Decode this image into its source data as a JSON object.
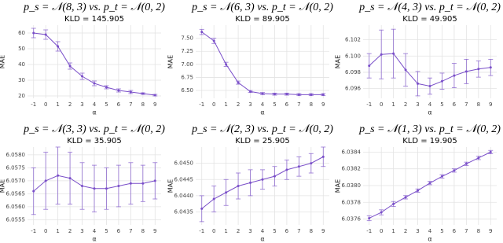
{
  "chart_data": [
    {
      "type": "line",
      "title": "p_s = 𝒩(8, 3)  vs.  p_t = 𝒩(0, 2)",
      "subtitle": "KLD = 145.905",
      "xlabel": "α",
      "ylabel": "MAE",
      "color": "#7a4fc9",
      "grid": true,
      "x": [
        -1,
        0,
        1,
        2,
        3,
        4,
        5,
        6,
        7,
        8,
        9
      ],
      "xlim": [
        -1.5,
        9.5
      ],
      "xticks": [
        -1,
        0,
        1,
        2,
        3,
        4,
        5,
        6,
        7,
        8,
        9
      ],
      "values": [
        60,
        59,
        51.5,
        39,
        32.5,
        28,
        25.5,
        23.5,
        22.5,
        21.5,
        20.5
      ],
      "errors": [
        3,
        3,
        3,
        2,
        2,
        1.5,
        1,
        1,
        1,
        0.5,
        0.5
      ],
      "ylim": [
        18.5,
        65
      ],
      "yticks": [
        20,
        30,
        40,
        50,
        60
      ]
    },
    {
      "type": "line",
      "title": "p_s = 𝒩(6, 3)  vs.  p_t = 𝒩(0, 2)",
      "subtitle": "KLD = 89.905",
      "xlabel": "α",
      "ylabel": "MAE",
      "color": "#7a4fc9",
      "grid": true,
      "x": [
        -1,
        0,
        1,
        2,
        3,
        4,
        5,
        6,
        7,
        8,
        9
      ],
      "xlim": [
        -1.5,
        9.5
      ],
      "xticks": [
        -1,
        0,
        1,
        2,
        3,
        4,
        5,
        6,
        7,
        8,
        9
      ],
      "values": [
        7.62,
        7.45,
        7.0,
        6.65,
        6.48,
        6.44,
        6.43,
        6.43,
        6.42,
        6.42,
        6.42
      ],
      "errors": [
        0.05,
        0.05,
        0.04,
        0.03,
        0.02,
        0.02,
        0.02,
        0.02,
        0.02,
        0.02,
        0.02
      ],
      "ylim": [
        6.35,
        7.75
      ],
      "yticks": [
        {
          "value": 6.5,
          "label": "6.50"
        },
        {
          "value": 6.75,
          "label": "6.75"
        },
        {
          "value": 7,
          "label": "7.00"
        },
        {
          "value": 7.25,
          "label": "7.25"
        },
        {
          "value": 7.5,
          "label": "7.50"
        }
      ]
    },
    {
      "type": "line",
      "title": "p_s = 𝒩(4, 3)  vs.  p_t = 𝒩(0, 2)",
      "subtitle": "KLD = 49.905",
      "xlabel": "α",
      "ylabel": "MAE",
      "color": "#7a4fc9",
      "grid": true,
      "x": [
        -1,
        0,
        1,
        2,
        3,
        4,
        5,
        6,
        7,
        8,
        9
      ],
      "xlim": [
        -1.5,
        9.5
      ],
      "xticks": [
        -1,
        0,
        1,
        2,
        3,
        4,
        5,
        6,
        7,
        8,
        9
      ],
      "values": [
        6.0988,
        6.1002,
        6.1003,
        6.0983,
        6.0966,
        6.0963,
        6.0969,
        6.0976,
        6.0981,
        6.0984,
        6.0986
      ],
      "errors": [
        0.0015,
        0.003,
        0.003,
        0.002,
        0.0015,
        0.001,
        0.001,
        0.0015,
        0.0015,
        0.001,
        0.001
      ],
      "ylim": [
        6.0948,
        6.1038
      ],
      "yticks": [
        6.096,
        6.098,
        {
          "value": 6.1,
          "label": "6.100"
        },
        6.102
      ]
    },
    {
      "type": "line",
      "title": "p_s = 𝒩(3, 3)  vs.  p_t = 𝒩(0, 2)",
      "subtitle": "KLD = 35.905",
      "xlabel": "α",
      "ylabel": "MAE",
      "color": "#7a4fc9",
      "grid": true,
      "x": [
        -1,
        0,
        1,
        2,
        3,
        4,
        5,
        6,
        7,
        8,
        9
      ],
      "xlim": [
        -1.5,
        9.5
      ],
      "xticks": [
        -1,
        0,
        1,
        2,
        3,
        4,
        5,
        6,
        7,
        8,
        9
      ],
      "values": [
        6.0566,
        6.057,
        6.0572,
        6.0571,
        6.0568,
        6.0567,
        6.0567,
        6.0568,
        6.0569,
        6.0569,
        6.057
      ],
      "errors": [
        0.0009,
        0.0011,
        0.0011,
        0.001,
        0.0009,
        0.0009,
        0.0008,
        0.0008,
        0.0008,
        0.0007,
        0.0007
      ],
      "ylim": [
        6.0553,
        6.0583
      ],
      "yticks": [
        6.0555,
        {
          "value": 6.056,
          "label": "6.0560"
        },
        6.0565,
        {
          "value": 6.057,
          "label": "6.0570"
        },
        6.0575,
        {
          "value": 6.058,
          "label": "6.0580"
        }
      ]
    },
    {
      "type": "line",
      "title": "p_s = 𝒩(2, 3)  vs.  p_t = 𝒩(0, 2)",
      "subtitle": "KLD = 25.905",
      "xlabel": "α",
      "ylabel": "MAE",
      "color": "#7a4fc9",
      "grid": true,
      "x": [
        -1,
        0,
        1,
        2,
        3,
        4,
        5,
        6,
        7,
        8,
        9
      ],
      "xlim": [
        -1.5,
        9.5
      ],
      "xticks": [
        -1,
        0,
        1,
        2,
        3,
        4,
        5,
        6,
        7,
        8,
        9
      ],
      "values": [
        6.0436,
        6.0439,
        6.0441,
        6.0443,
        6.0444,
        6.0445,
        6.0446,
        6.0448,
        6.0449,
        6.045,
        6.0452
      ],
      "errors": [
        0.0004,
        0.0004,
        0.0004,
        0.0004,
        0.0004,
        0.0003,
        0.0003,
        0.0003,
        0.0003,
        0.0003,
        0.0003
      ],
      "ylim": [
        6.0431,
        6.0455
      ],
      "yticks": [
        6.0435,
        {
          "value": 6.044,
          "label": "6.0440"
        },
        6.0445,
        {
          "value": 6.045,
          "label": "6.0450"
        }
      ]
    },
    {
      "type": "line",
      "title": "p_s = 𝒩(1, 3)  vs.  p_t = 𝒩(0, 2)",
      "subtitle": "KLD = 19.905",
      "xlabel": "α",
      "ylabel": "MAE",
      "color": "#7a4fc9",
      "grid": true,
      "x": [
        -1,
        0,
        1,
        2,
        3,
        4,
        5,
        6,
        7,
        8,
        9
      ],
      "xlim": [
        -1.5,
        9.5
      ],
      "xticks": [
        -1,
        0,
        1,
        2,
        3,
        4,
        5,
        6,
        7,
        8,
        9
      ],
      "values": [
        6.03761,
        6.03768,
        6.03778,
        6.03786,
        6.03794,
        6.03803,
        6.03811,
        6.03818,
        6.03826,
        6.03833,
        6.0384
      ],
      "errors": [
        3e-05,
        3e-05,
        3e-05,
        2e-05,
        2e-05,
        2e-05,
        2e-05,
        2e-05,
        2e-05,
        2e-05,
        2e-05
      ],
      "ylim": [
        6.03753,
        6.03846
      ],
      "yticks": [
        6.0376,
        6.0378,
        {
          "value": 6.038,
          "label": "6.0380"
        },
        6.0382,
        6.0384
      ]
    }
  ]
}
